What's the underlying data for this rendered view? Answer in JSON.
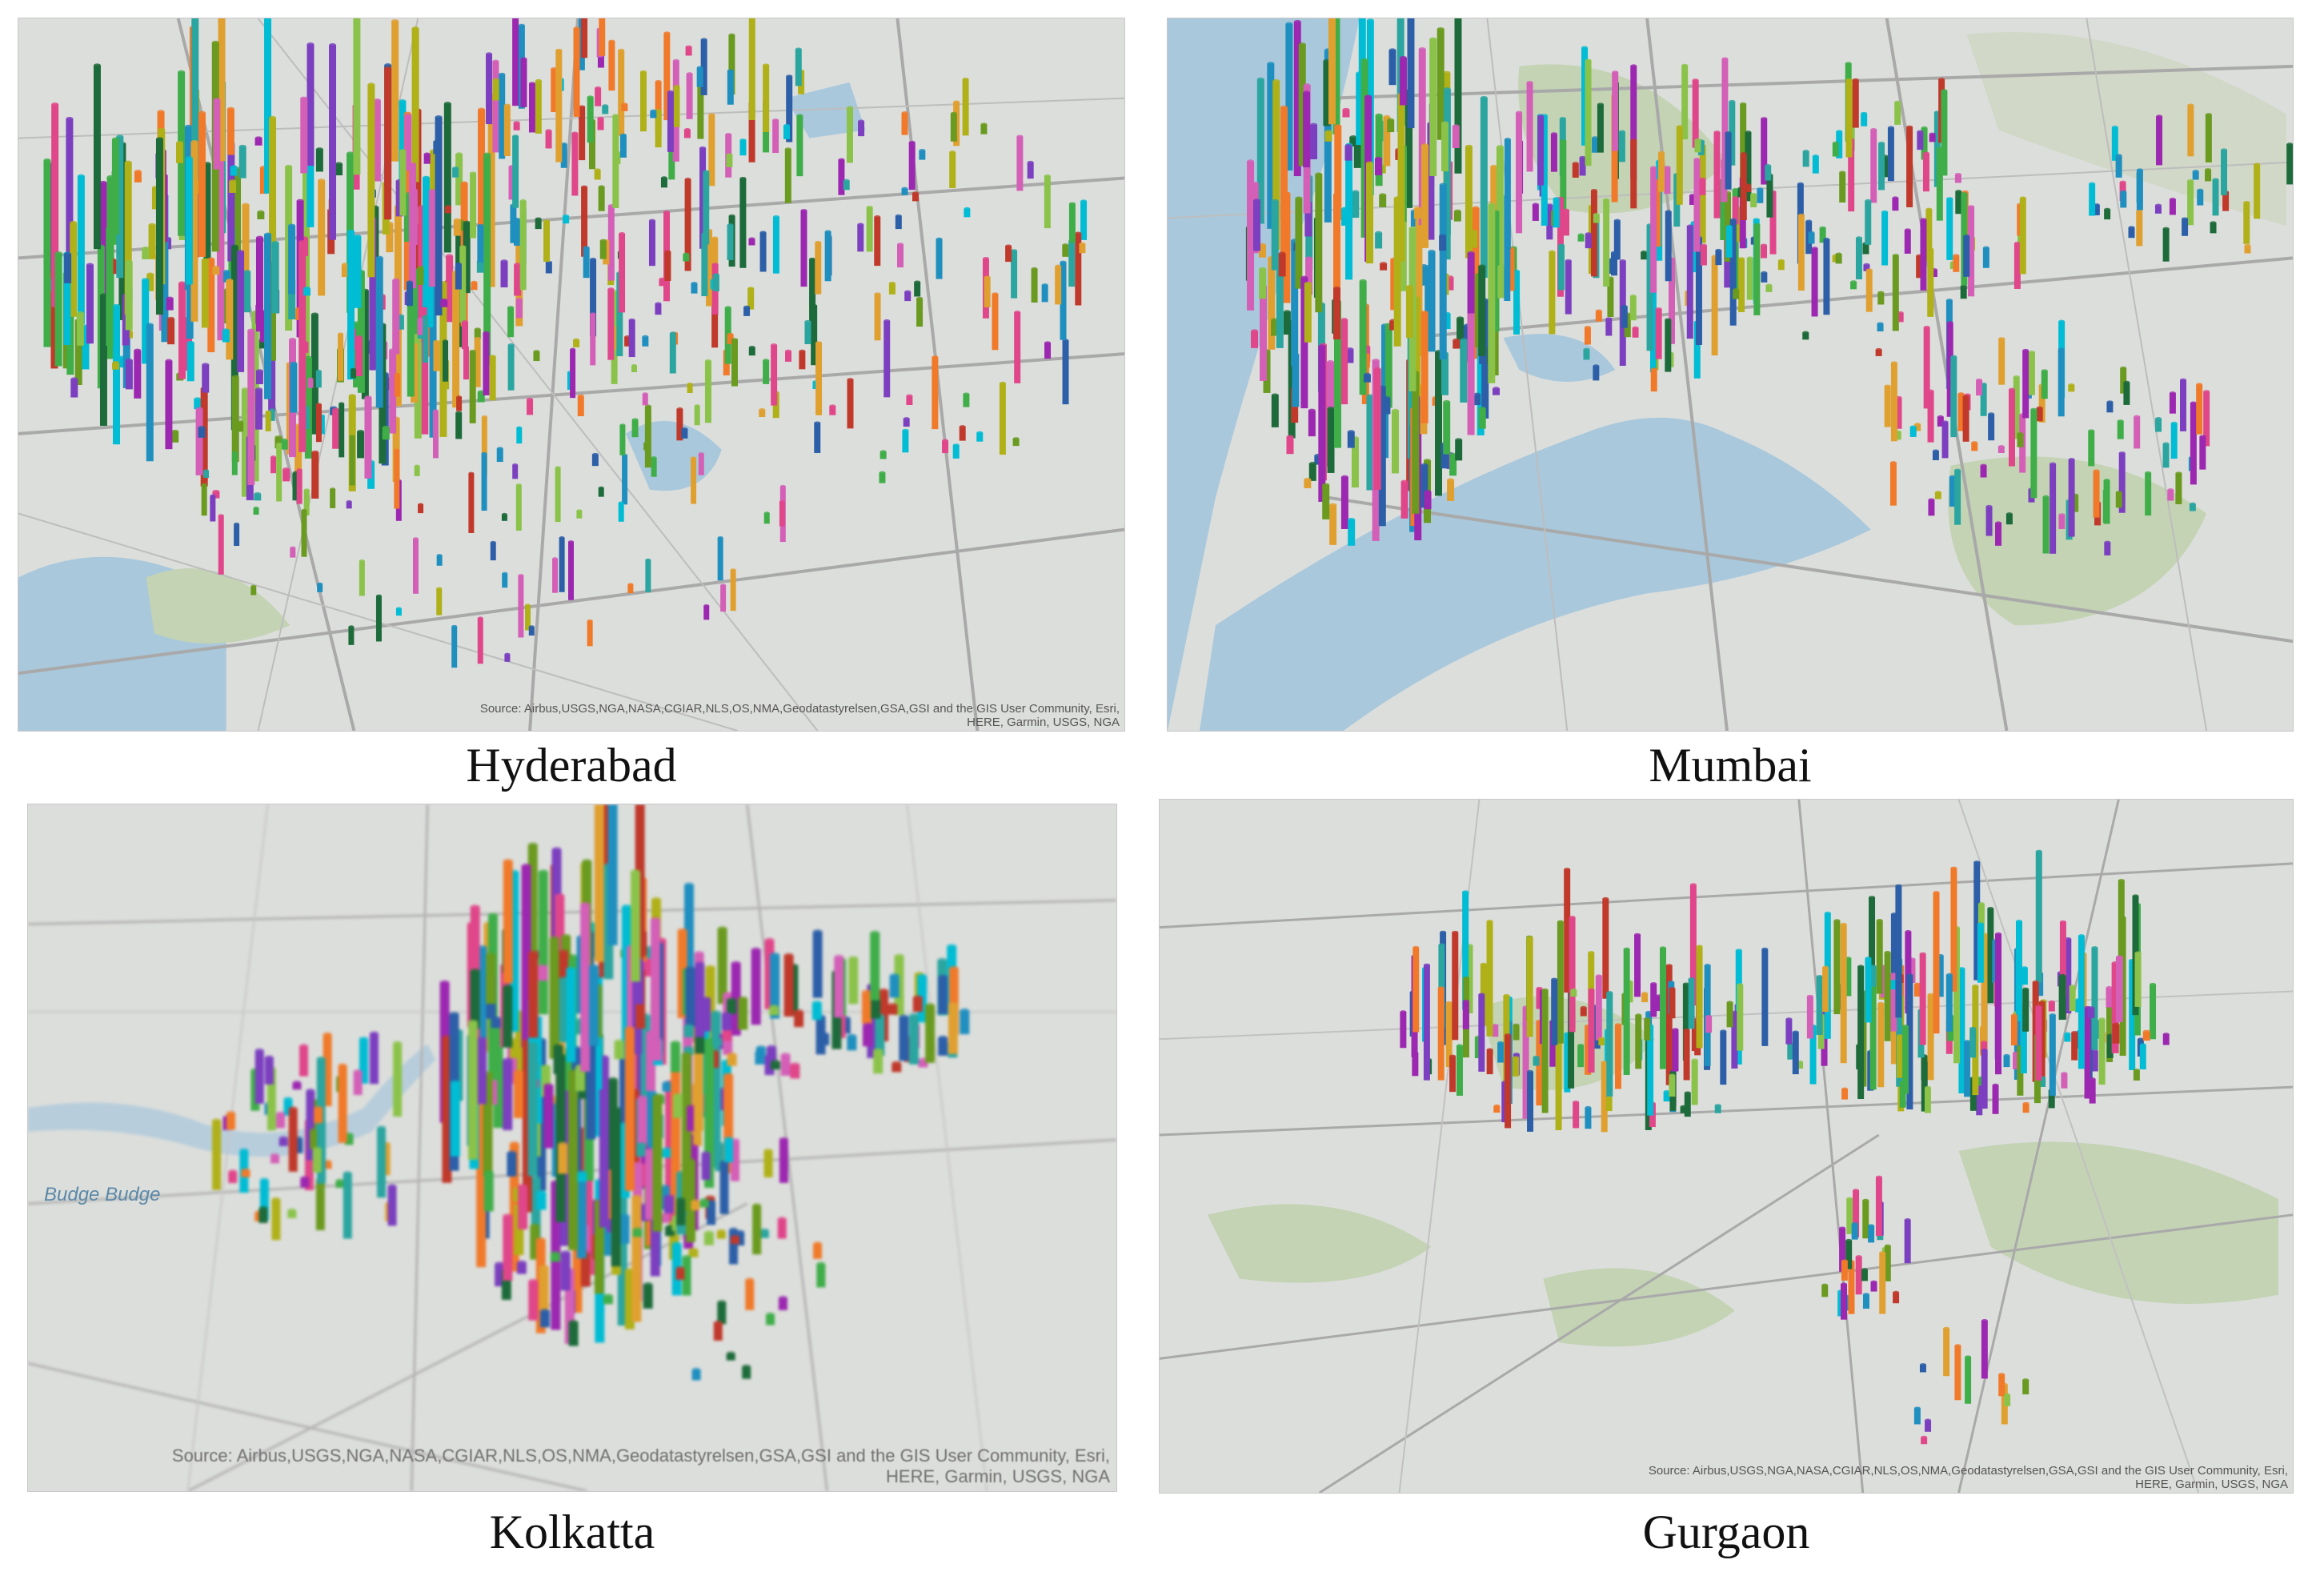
{
  "panels": [
    {
      "id": "hyderabad",
      "caption": "Hyderabad",
      "attribution_line1": "Source: Airbus,USGS,NGA,NASA,CGIAR,NLS,OS,NMA,Geodatastyrelsen,GSA,GSI and the GIS User Community, Esri,",
      "attribution_line2": "HERE, Garmin, USGS, NGA"
    },
    {
      "id": "mumbai",
      "caption": "Mumbai"
    },
    {
      "id": "kolkatta",
      "caption": "Kolkatta",
      "attribution_line1": "Source: Airbus,USGS,NGA,NASA,CGIAR,NLS,OS,NMA,Geodatastyrelsen,GSA,GSI and the GIS User Community, Esri,",
      "attribution_line2": "HERE, Garmin, USGS, NGA",
      "water_label": "Budge Budge"
    },
    {
      "id": "gurgaon",
      "caption": "Gurgaon",
      "attribution_line1": "Source: Airbus,USGS,NGA,NASA,CGIAR,NLS,OS,NMA,Geodatastyrelsen,GSA,GSI and the GIS User Community, Esri,",
      "attribution_line2": "HERE, Garmin, USGS, NGA"
    }
  ],
  "colors": {
    "map_background": "#dcdedb",
    "water": "#a9c8dc",
    "park": "#c3d3b4",
    "road": "#a9a9a9",
    "bar_palette": [
      "#e0468a",
      "#3fae49",
      "#7b3fbf",
      "#e0a030",
      "#1f8fbf",
      "#2aa5a0",
      "#c0392b",
      "#6a9a1f",
      "#d35fb7",
      "#2c5fa8",
      "#f07a2a",
      "#1d6b3a",
      "#b0b018",
      "#9c27b0",
      "#00bcd4",
      "#8bc34a"
    ]
  }
}
